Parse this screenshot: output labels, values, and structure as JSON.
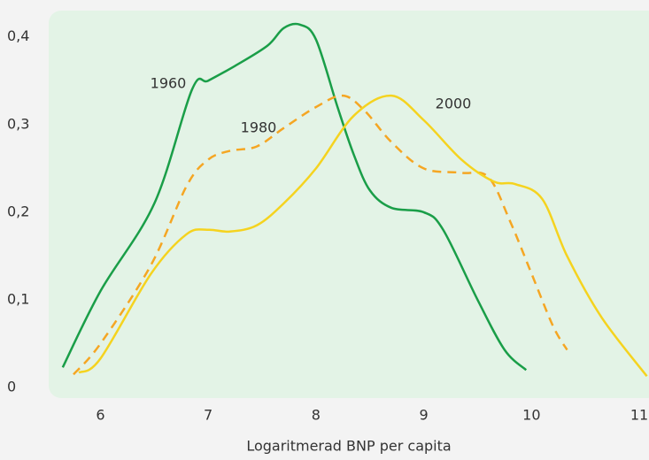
{
  "chart_data": {
    "type": "line",
    "xlabel": "Logaritmerad BNP per capita",
    "xlim": [
      5.52,
      11.09
    ],
    "ylim": [
      -0.012,
      0.43
    ],
    "xticks": [
      6,
      7,
      8,
      9,
      10,
      11
    ],
    "yticks": [
      0,
      {
        "value": 0.1,
        "label": "0,1"
      },
      {
        "value": 0.2,
        "label": "0,2"
      },
      {
        "value": 0.3,
        "label": "0,3"
      },
      {
        "value": 0.4,
        "label": "0,4"
      }
    ],
    "series": [
      {
        "name": "1960",
        "color": "#1a9e48",
        "dashed": false,
        "x": [
          5.65,
          6.0,
          6.5,
          6.85,
          7.0,
          7.25,
          7.55,
          7.7,
          7.85,
          8.0,
          8.2,
          8.35,
          8.5,
          8.7,
          9.0,
          9.18,
          9.5,
          9.75,
          9.95
        ],
        "values": [
          0.023,
          0.11,
          0.21,
          0.34,
          0.35,
          0.367,
          0.39,
          0.41,
          0.414,
          0.397,
          0.32,
          0.266,
          0.225,
          0.205,
          0.2,
          0.18,
          0.1,
          0.043,
          0.02
        ]
      },
      {
        "name": "1980",
        "color": "#f5a623",
        "dashed": true,
        "x": [
          5.75,
          6.0,
          6.47,
          6.8,
          7.0,
          7.2,
          7.45,
          7.7,
          8.0,
          8.25,
          8.45,
          8.7,
          9.0,
          9.35,
          9.6,
          9.8,
          10.0,
          10.2,
          10.33
        ],
        "values": [
          0.015,
          0.05,
          0.14,
          0.23,
          0.26,
          0.27,
          0.275,
          0.296,
          0.32,
          0.333,
          0.316,
          0.28,
          0.25,
          0.245,
          0.24,
          0.19,
          0.13,
          0.07,
          0.043
        ]
      },
      {
        "name": "2000",
        "color": "#f5d31f",
        "dashed": false,
        "x": [
          5.8,
          6.0,
          6.47,
          6.8,
          7.0,
          7.2,
          7.45,
          7.7,
          8.0,
          8.35,
          8.7,
          9.0,
          9.35,
          9.65,
          9.85,
          10.1,
          10.33,
          10.65,
          11.07
        ],
        "values": [
          0.017,
          0.033,
          0.13,
          0.175,
          0.18,
          0.178,
          0.185,
          0.21,
          0.25,
          0.31,
          0.333,
          0.305,
          0.26,
          0.235,
          0.232,
          0.215,
          0.15,
          0.08,
          0.013
        ]
      }
    ]
  }
}
